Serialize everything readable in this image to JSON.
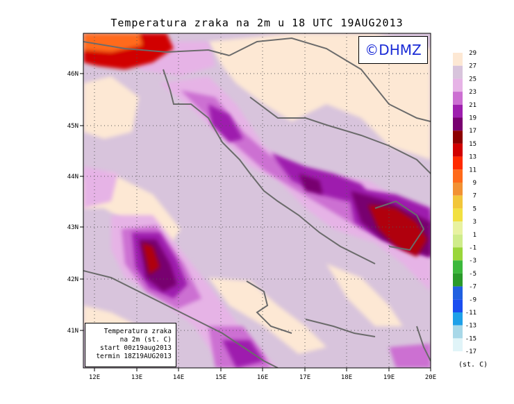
{
  "title": "Temperatura zraka na 2m u 18 UTC 19AUG2013",
  "watermark": "©DHMZ",
  "info": {
    "line1": "Temperatura zraka",
    "line2": "na 2m (st. C)",
    "line3": "start 00z19aug2013",
    "line4": "termin 18Z19AUG2013"
  },
  "axes": {
    "x_ticks": [
      "12E",
      "13E",
      "14E",
      "15E",
      "16E",
      "17E",
      "18E",
      "19E",
      "20E"
    ],
    "y_ticks": [
      "46N",
      "45N",
      "44N",
      "43N",
      "42N",
      "41N"
    ]
  },
  "legend": {
    "unit": "(st. C)",
    "labels": [
      "29",
      "27",
      "25",
      "23",
      "21",
      "19",
      "17",
      "15",
      "13",
      "11",
      "9",
      "7",
      "5",
      "3",
      "1",
      "-1",
      "-3",
      "-5",
      "-7",
      "-9",
      "-11",
      "-13",
      "-15",
      "-17"
    ],
    "colors": [
      "#fde8d4",
      "#d8c4dc",
      "#e6b3e6",
      "#cc6fd2",
      "#9e1fae",
      "#780070",
      "#8c0000",
      "#d10000",
      "#ff2a00",
      "#ff6a1a",
      "#f29133",
      "#f2c63a",
      "#f2e040",
      "#e8f2a0",
      "#cfec8a",
      "#9ad63a",
      "#3cb83c",
      "#2a9a2a",
      "#2060e0",
      "#1a4ef0",
      "#1fa0e8",
      "#a8d8e8",
      "#e0f4f8"
    ]
  },
  "colors": {
    "background_land": "#d8c4dc",
    "warm_pale": "#fde8d4",
    "coast": "#6b6b6b",
    "watermark_text": "#1a2bd6"
  }
}
